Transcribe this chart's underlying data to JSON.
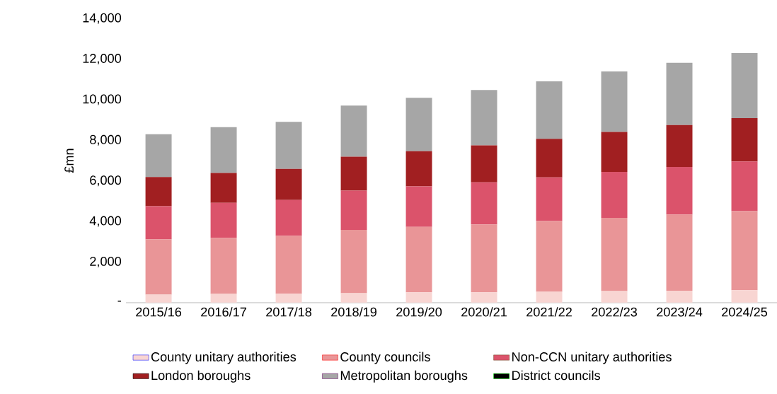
{
  "chart_data": {
    "type": "bar",
    "stacked": true,
    "ylabel": "£mn",
    "categories": [
      "2015/16",
      "2016/17",
      "2017/18",
      "2018/19",
      "2019/20",
      "2020/21",
      "2021/22",
      "2022/23",
      "2023/24",
      "2024/25"
    ],
    "series": [
      {
        "name": "County unitary authorities",
        "color": "#f8d5d2",
        "values": [
          400,
          430,
          440,
          470,
          510,
          510,
          540,
          570,
          590,
          610
        ]
      },
      {
        "name": "County councils",
        "color": "#e99597",
        "values": [
          2720,
          2760,
          2850,
          3120,
          3220,
          3350,
          3480,
          3610,
          3750,
          3900
        ]
      },
      {
        "name": "Non-CCN unitary authorities",
        "color": "#db536b",
        "values": [
          1630,
          1730,
          1770,
          1930,
          2000,
          2070,
          2150,
          2260,
          2350,
          2450
        ]
      },
      {
        "name": "London boroughs",
        "color": "#a11f21",
        "values": [
          1440,
          1470,
          1530,
          1670,
          1730,
          1820,
          1900,
          1970,
          2060,
          2130
        ]
      },
      {
        "name": "Metropolitan boroughs",
        "color": "#a6a6a6",
        "values": [
          2110,
          2260,
          2320,
          2520,
          2640,
          2730,
          2840,
          2980,
          3070,
          3210
        ]
      },
      {
        "name": "District councils",
        "color": "#000000",
        "values": [
          0,
          0,
          0,
          0,
          0,
          0,
          0,
          0,
          0,
          0
        ]
      }
    ],
    "ylim": [
      0,
      14000
    ],
    "yticks": [
      {
        "value": 0,
        "label": "-"
      },
      {
        "value": 2000,
        "label": "2,000"
      },
      {
        "value": 4000,
        "label": "4,000"
      },
      {
        "value": 6000,
        "label": "6,000"
      },
      {
        "value": 8000,
        "label": "8,000"
      },
      {
        "value": 10000,
        "label": "10,000"
      },
      {
        "value": 12000,
        "label": "12,000"
      },
      {
        "value": 14000,
        "label": "14,000"
      }
    ],
    "grid": false,
    "legend": "bottom"
  }
}
